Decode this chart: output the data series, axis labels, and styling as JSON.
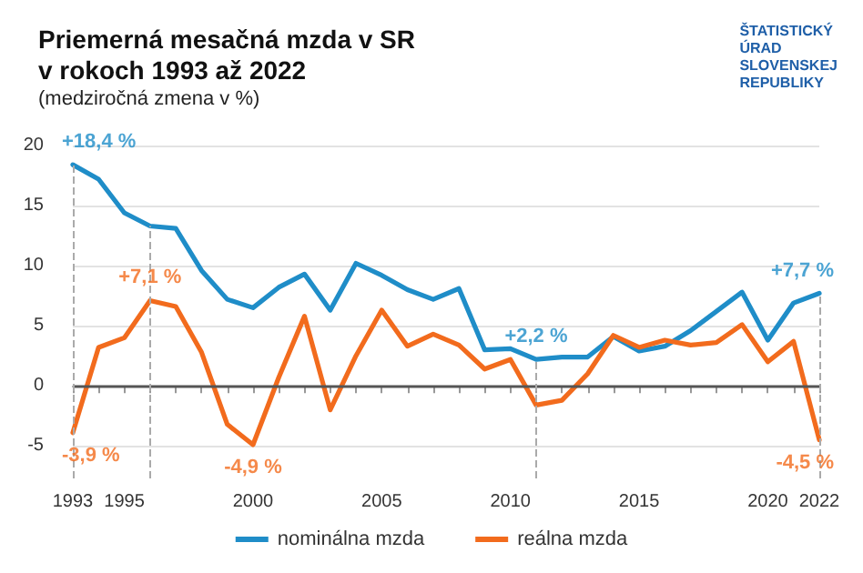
{
  "chart_data": {
    "type": "line",
    "title": "Priemerná mesačná mzda v SR\nv rokoch 1993 až 2022",
    "subtitle": "(medziročná zmena v %)",
    "x": [
      1993,
      1994,
      1995,
      1996,
      1997,
      1998,
      1999,
      2000,
      2001,
      2002,
      2003,
      2004,
      2005,
      2006,
      2007,
      2008,
      2009,
      2010,
      2011,
      2012,
      2013,
      2014,
      2015,
      2016,
      2017,
      2018,
      2019,
      2020,
      2021,
      2022
    ],
    "series": [
      {
        "name": "nominálna mzda",
        "color": "#1f8dc8",
        "values": [
          18.4,
          17.2,
          14.4,
          13.3,
          13.1,
          9.6,
          7.2,
          6.5,
          8.2,
          9.3,
          6.3,
          10.2,
          9.2,
          8.0,
          7.2,
          8.1,
          3.0,
          3.1,
          2.2,
          2.4,
          2.4,
          4.1,
          2.9,
          3.3,
          4.6,
          6.2,
          7.8,
          3.8,
          6.9,
          7.7
        ]
      },
      {
        "name": "reálna mzda",
        "color": "#f26b1d",
        "values": [
          -3.9,
          3.2,
          4.0,
          7.1,
          6.6,
          2.8,
          -3.2,
          -4.9,
          0.7,
          5.8,
          -2.0,
          2.5,
          6.3,
          3.3,
          4.3,
          3.4,
          1.4,
          2.2,
          -1.6,
          -1.2,
          1.0,
          4.2,
          3.2,
          3.8,
          3.4,
          3.6,
          5.1,
          2.0,
          3.7,
          -4.5
        ]
      }
    ],
    "xlim": [
      1993,
      2022
    ],
    "xticks": [
      1993,
      {
        "value": 1994,
        "label": null
      },
      1995,
      {
        "value": 1996,
        "label": null
      },
      {
        "value": 1997,
        "label": null
      },
      {
        "value": 1998,
        "label": null
      },
      {
        "value": 1999,
        "label": null
      },
      2000,
      {
        "value": 2001,
        "label": null
      },
      {
        "value": 2002,
        "label": null
      },
      {
        "value": 2003,
        "label": null
      },
      {
        "value": 2004,
        "label": null
      },
      2005,
      {
        "value": 2006,
        "label": null
      },
      {
        "value": 2007,
        "label": null
      },
      {
        "value": 2008,
        "label": null
      },
      {
        "value": 2009,
        "label": null
      },
      2010,
      {
        "value": 2011,
        "label": null
      },
      {
        "value": 2012,
        "label": null
      },
      {
        "value": 2013,
        "label": null
      },
      {
        "value": 2014,
        "label": null
      },
      2015,
      {
        "value": 2016,
        "label": null
      },
      {
        "value": 2017,
        "label": null
      },
      {
        "value": 2018,
        "label": null
      },
      {
        "value": 2019,
        "label": null
      },
      2020,
      {
        "value": 2021,
        "label": null
      },
      2022
    ],
    "ylim": [
      -7.7,
      20
    ],
    "yticks": [
      -5,
      0,
      5,
      10,
      15,
      20
    ],
    "grid": "y",
    "legend": "bottom",
    "marker": "none",
    "line_style": "solid",
    "ref_lines": [
      {
        "axis": "y",
        "value": 0,
        "color": "#555555",
        "line_style": "solid"
      },
      {
        "axis": "x",
        "value": 1993,
        "color": "#aaaaaa",
        "line_style": "dashed"
      },
      {
        "axis": "x",
        "value": 1996,
        "color": "#aaaaaa",
        "line_style": "dashed"
      },
      {
        "axis": "x",
        "value": 2011,
        "color": "#aaaaaa",
        "line_style": "dashed"
      },
      {
        "axis": "x",
        "value": 2022,
        "color": "#aaaaaa",
        "line_style": "dashed"
      }
    ],
    "annotations": [
      {
        "text": "+18,4 %",
        "x": 1993,
        "y": 18.4
      },
      {
        "text": "-3,9 %",
        "x": 1993,
        "y": -3.9
      },
      {
        "text": "+7,1 %",
        "x": 1996,
        "y": 7.1
      },
      {
        "text": "-4,9 %",
        "x": 2000,
        "y": -4.9
      },
      {
        "text": "+2,2 %",
        "x": 2011,
        "y": 2.2
      },
      {
        "text": "+7,7 %",
        "x": 2022,
        "y": 7.7
      },
      {
        "text": "-4,5 %",
        "x": 2022,
        "y": -4.5
      },
      "ŠTATISTICKÝ\nÚRAD\nSLOVENSKEJ\nREPUBLIKY"
    ]
  }
}
